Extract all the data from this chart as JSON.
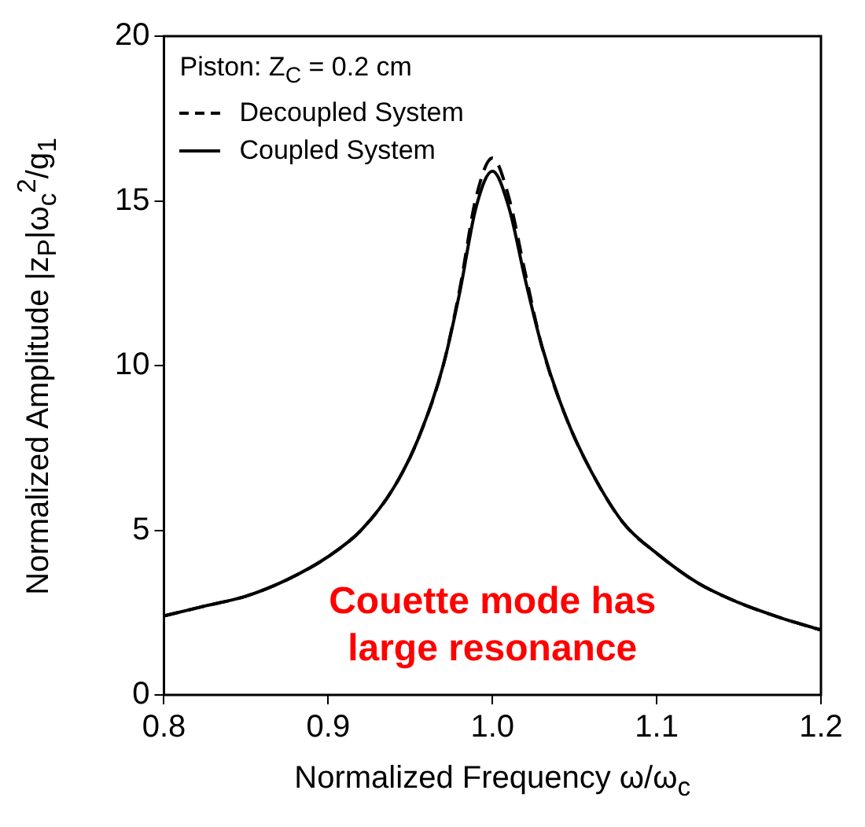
{
  "chart_data": {
    "type": "line",
    "xlabel": "Normalized Frequency ω/ω$_{c}$",
    "ylabel": "Normalized Amplitude |z$_{P}$|ω$_{c}$$^{2}$/g$_{1}$",
    "legend_title": "Piston: Z$_{C}$ = 0.2 cm",
    "legend": "top left",
    "x": [
      0.8,
      0.825,
      0.85,
      0.875,
      0.9,
      0.92,
      0.94,
      0.955,
      0.97,
      0.98,
      0.99,
      1.0,
      1.01,
      1.02,
      1.03,
      1.045,
      1.06,
      1.08,
      1.1,
      1.125,
      1.15,
      1.175,
      1.2
    ],
    "series": [
      {
        "name": "Decoupled System",
        "color": "#000000",
        "line_style": "dashed",
        "values": [
          2.4,
          2.7,
          3.0,
          3.5,
          4.2,
          5.0,
          6.3,
          7.8,
          10.0,
          12.3,
          15.1,
          16.3,
          15.1,
          12.8,
          10.6,
          8.4,
          6.8,
          5.2,
          4.3,
          3.4,
          2.8,
          2.35,
          1.97
        ]
      },
      {
        "name": "Coupled System",
        "color": "#000000",
        "line_style": "solid",
        "values": [
          2.4,
          2.7,
          3.0,
          3.5,
          4.2,
          5.0,
          6.3,
          7.8,
          10.0,
          12.2,
          14.8,
          15.9,
          14.8,
          12.6,
          10.6,
          8.4,
          6.8,
          5.2,
          4.3,
          3.4,
          2.8,
          2.35,
          1.97
        ]
      }
    ],
    "xlim": [
      0.8,
      1.2
    ],
    "xticks": [
      0.8,
      0.9,
      {
        "value": 1.0,
        "label": "1.0"
      },
      1.1,
      1.2
    ],
    "ylim": [
      0,
      20
    ],
    "yticks": [
      0,
      5,
      10,
      15,
      20
    ],
    "grid": false,
    "marker": "none",
    "annotations": [
      "Couette mode has large resonance"
    ]
  }
}
